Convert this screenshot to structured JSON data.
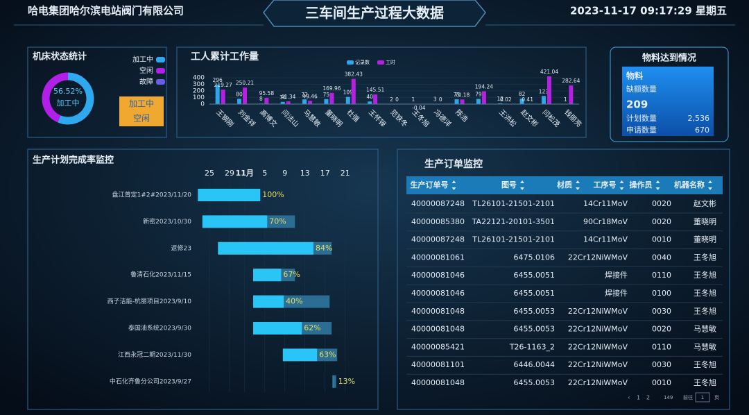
{
  "header": {
    "company": "哈电集团哈尔滨电站阀门有限公司",
    "title": "三车间生产过程大数据",
    "datetime": "2023-11-17 09:17:29 星期五"
  },
  "chart_data": [
    {
      "type": "donut",
      "title": "机床状态统计",
      "categories": [
        "加工中",
        "空闲",
        "故障"
      ],
      "values": [
        56.52,
        43.48,
        0
      ],
      "value_labels": [
        "56.52%",
        null,
        null
      ],
      "colors": [
        "#2fa8f0",
        "#b21fe8",
        "#6c5ce7"
      ]
    },
    {
      "type": "bar",
      "title": "工人累计工作量",
      "categories": [
        "王钢刚",
        "刘金祥",
        "高博文",
        "闫法山",
        "马慧敏",
        "董晓明",
        "杜强",
        "王怀铎",
        "范铁冬",
        "王冬旭",
        "冯德洋",
        "陈浩",
        null,
        "王洪松",
        "赵文彬",
        "闫松茂",
        "钱丽亮"
      ],
      "series": [
        {
          "name": "记录数",
          "color": "#2fa5ea",
          "values": [
            296,
            80,
            8,
            34,
            72,
            75,
            109,
            40,
            2,
            1,
            3,
            73,
            79,
            12,
            82,
            123,
            1
          ]
        },
        {
          "name": "工时",
          "color": "#b620e0",
          "values": [
            219.27,
            250.21,
            95.58,
            41.34,
            49.46,
            169.96,
            382.43,
            145.51,
            0,
            -0.04,
            0,
            70.18,
            194.24,
            0.02,
            0.41,
            421.04,
            282.64
          ]
        }
      ],
      "ylim": [
        0,
        400
      ],
      "yticks": [
        0,
        100,
        200,
        300,
        400
      ]
    },
    {
      "type": "gantt",
      "title": "生产计划完成率监控",
      "categories": [
        "盘江普定1#2#2023/11/20",
        "新密2023/10/30",
        "返修23",
        "鲁清石化2023/11/15",
        "西子洁能-杭丽项目2023/9/10",
        "泰国油系统2023/9/30",
        "江西永冠二期2023/11/30",
        "中石化齐鲁分公司2023/9/27"
      ],
      "start": [
        22.7,
        23.6,
        26.7,
        33.7,
        33.7,
        33.7,
        39.6,
        49.5
      ],
      "end": [
        35.1,
        42,
        49.3,
        42,
        48.9,
        49.3,
        50.4,
        50.2
      ],
      "values": [
        100,
        70,
        84,
        67,
        40,
        62,
        63,
        13
      ],
      "value_labels": [
        "100%",
        "70%",
        "84%",
        "67%",
        "40%",
        "62%",
        "63%",
        "13%"
      ],
      "color": "#29c5f6",
      "track_color": "#2b6d93",
      "xlim": [
        22,
        55
      ],
      "xticks": [
        25,
        29,
        {
          "value": 32,
          "label": "11月"
        },
        {
          "value": 36,
          "label": "5"
        },
        {
          "value": 40,
          "label": "9"
        },
        {
          "value": 44,
          "label": "13"
        },
        {
          "value": 48,
          "label": "17"
        },
        {
          "value": 52,
          "label": "21"
        }
      ]
    }
  ],
  "material": {
    "title": "物料达到情况",
    "card_title": "物料",
    "shortage_label": "缺额数量",
    "shortage": "209",
    "planned_label": "计划数量",
    "planned": "2,536",
    "requested_label": "申请数量",
    "requested": "670"
  },
  "order_table": {
    "title": "生产订单监控",
    "columns": [
      "生产订单号",
      "图号",
      "材质",
      "工序号",
      "操作员",
      "机器名称"
    ],
    "rows": [
      [
        "40000087248",
        "TL26101-21501-2101",
        "14Cr11MoV",
        "0020",
        "赵文彬"
      ],
      [
        "40000085380",
        "TA22121-20101-3501",
        "90Cr18MoV",
        "0020",
        "董晓明"
      ],
      [
        "40000087248",
        "TL26101-21501-2101",
        "14Cr11MoV",
        "0010",
        "董晓明"
      ],
      [
        "40000081061",
        "6475.0106",
        "22Cr12NiWMoV",
        "0040",
        "王冬旭"
      ],
      [
        "40000081046",
        "6455.0051",
        "焊接件",
        "0110",
        "王冬旭"
      ],
      [
        "40000081046",
        "6455.0051",
        "焊接件",
        "0100",
        "王冬旭"
      ],
      [
        "40000081048",
        "6455.0053",
        "22Cr12NiWMoV",
        "0030",
        "王冬旭"
      ],
      [
        "40000081048",
        "6455.0053",
        "22Cr12NiWMoV",
        "0020",
        "马慧敏"
      ],
      [
        "40000085421",
        "T26-1163_2",
        "22Cr12NiWMoV",
        "0110",
        "马慧敏"
      ],
      [
        "40000081101",
        "6446.0044",
        "22Cr12NiWMoV",
        "0030",
        "王冬旭"
      ],
      [
        "40000081048",
        "6455.0053",
        "22Cr12NiWMoV",
        "0010",
        "王冬旭"
      ]
    ],
    "pagination": {
      "pages": [
        "1",
        "2"
      ],
      "last": "149",
      "goto": "前往",
      "input": "1",
      "unit": "页"
    }
  }
}
